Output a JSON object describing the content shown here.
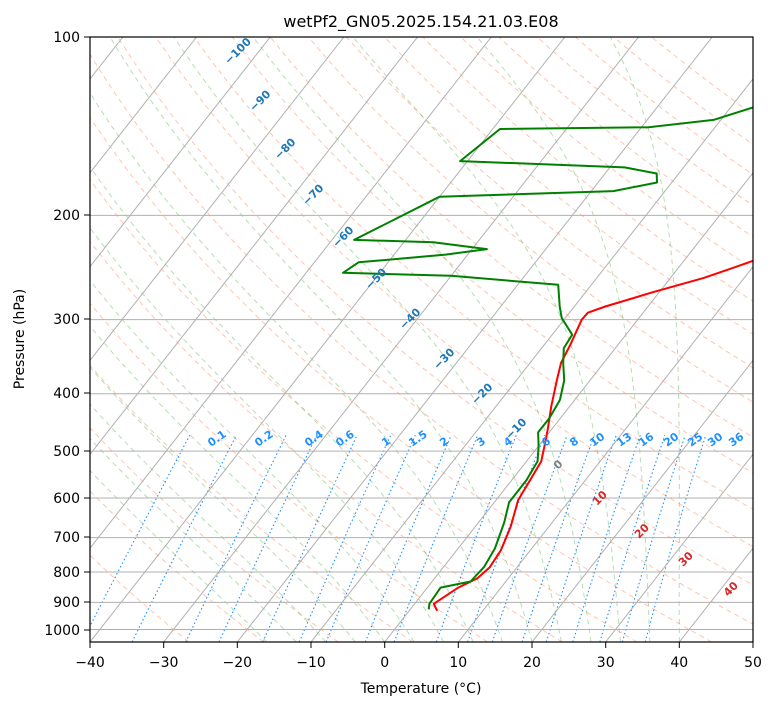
{
  "chart_data": {
    "type": "line",
    "title": "wetPf2_GN05.2025.154.21.03.E08",
    "xlabel": "Temperature (°C)",
    "ylabel": "Pressure (hPa)",
    "xlim": [
      -40,
      50
    ],
    "ylim": [
      1050,
      100
    ],
    "y_scale": "log",
    "grid": true,
    "x_ticks": [
      "−40",
      "−30",
      "−20",
      "−10",
      "0",
      "10",
      "20",
      "30",
      "40",
      "50"
    ],
    "x_tick_values": [
      -40,
      -30,
      -20,
      -10,
      0,
      10,
      20,
      30,
      40,
      50
    ],
    "y_ticks": [
      "100",
      "200",
      "300",
      "400",
      "500",
      "600",
      "700",
      "800",
      "900",
      "1000"
    ],
    "y_tick_values": [
      100,
      200,
      300,
      400,
      500,
      600,
      700,
      800,
      900,
      1000
    ],
    "colors": {
      "temperature": "#ff0000",
      "dewpoint": "#008000",
      "isotherm": "#b0b0b0",
      "dry_adiabat": "#ff7f50",
      "moist_adiabat": "#2ca02c",
      "mixing_ratio": "#1e90ff",
      "isotherm_label": "#1f77b4",
      "cape_label": "#d62728"
    },
    "series": [
      {
        "role": "temperature",
        "points": [
          [
            3.8,
            930
          ],
          [
            2.6,
            905
          ],
          [
            4.2,
            850
          ],
          [
            5.8,
            820
          ],
          [
            6.3,
            785
          ],
          [
            6.0,
            735
          ],
          [
            4.8,
            670
          ],
          [
            3.0,
            605
          ],
          [
            2.5,
            560
          ],
          [
            2.0,
            520
          ],
          [
            0.8,
            490
          ],
          [
            -0.5,
            460
          ],
          [
            -2.5,
            420
          ],
          [
            -4.5,
            380
          ],
          [
            -5.8,
            355
          ],
          [
            -6.5,
            330
          ],
          [
            -7.6,
            300
          ],
          [
            -7.5,
            292
          ],
          [
            -5.8,
            285
          ],
          [
            -1.0,
            270
          ],
          [
            4.5,
            255
          ],
          [
            7.5,
            245
          ],
          [
            12.0,
            230
          ],
          [
            16.5,
            216
          ],
          [
            18.5,
            205
          ],
          [
            21.5,
            190
          ],
          [
            23.5,
            180
          ],
          [
            28.0,
            160
          ],
          [
            30.5,
            145
          ],
          [
            32.5,
            128
          ],
          [
            35.0,
            118
          ],
          [
            37.5,
            110
          ],
          [
            40.0,
            100
          ]
        ]
      },
      {
        "role": "dewpoint",
        "points": [
          [
            2.5,
            925
          ],
          [
            2.0,
            905
          ],
          [
            1.8,
            850
          ],
          [
            5.2,
            830
          ],
          [
            5.5,
            785
          ],
          [
            5.0,
            730
          ],
          [
            3.5,
            660
          ],
          [
            2.0,
            610
          ],
          [
            2.0,
            560
          ],
          [
            1.5,
            520
          ],
          [
            0.0,
            490
          ],
          [
            -1.5,
            465
          ],
          [
            -1.5,
            440
          ],
          [
            -2.0,
            410
          ],
          [
            -3.5,
            380
          ],
          [
            -5.5,
            355
          ],
          [
            -7.0,
            335
          ],
          [
            -7.3,
            318
          ],
          [
            -10.5,
            298
          ],
          [
            -12.0,
            285
          ],
          [
            -14.5,
            262
          ],
          [
            -30.0,
            253
          ],
          [
            -45.0,
            250
          ],
          [
            -44.0,
            240
          ],
          [
            -33.0,
            233
          ],
          [
            -28.0,
            228
          ],
          [
            -36.0,
            222
          ],
          [
            -47.0,
            220
          ],
          [
            -40.0,
            186
          ],
          [
            -17.0,
            182
          ],
          [
            -12.0,
            176
          ],
          [
            -13.0,
            170
          ],
          [
            -18.0,
            166
          ],
          [
            -41.0,
            162
          ],
          [
            -39.0,
            143
          ],
          [
            -19.0,
            142
          ],
          [
            -11.0,
            138
          ],
          [
            -6.0,
            130
          ],
          [
            -2.5,
            115
          ],
          [
            -1.8,
            104
          ],
          [
            -2.0,
            100
          ]
        ]
      }
    ],
    "mixing_ratio_labels": [
      "0.1",
      "0.2",
      "0.4",
      "0.6",
      "1",
      "1.5",
      "2",
      "3",
      "4",
      "6",
      "8",
      "10",
      "13",
      "16",
      "20",
      "25",
      "30",
      "36"
    ],
    "isotherm_labels": [
      "−100",
      "−90",
      "−80",
      "−70",
      "−60",
      "−50",
      "−40",
      "−30",
      "−20",
      "−10"
    ],
    "cape_labels": [
      "0",
      "10",
      "20",
      "30",
      "40"
    ]
  }
}
